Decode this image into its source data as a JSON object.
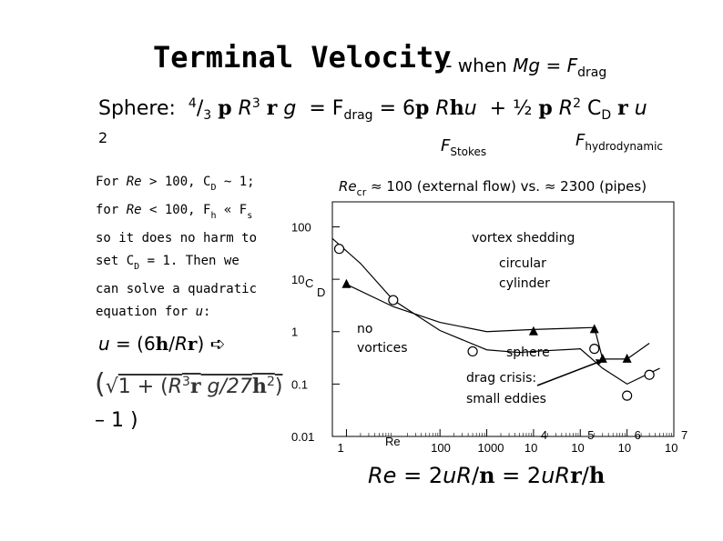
{
  "title": "Terminal Velocity",
  "subtitle_prefix": "-- when",
  "subtitle_mg": "Mg = F",
  "subtitle_drag_sub": "drag",
  "eq1": {
    "prefix": "Sphere:",
    "frac": "4",
    "frac_den": "3",
    "rho": "p",
    "R": "R",
    "cube": "3",
    "r": "r",
    "g": "g",
    "eq": "= F",
    "drag": "drag",
    "eq2": "= 6",
    "p2": "p",
    "R2": "R",
    "hbar": "h",
    "u": "u",
    "plus": "+ ½",
    "p3": "p",
    "R3": "R",
    "sq": "2",
    "cd": "C",
    "cd_sub": "D",
    "r2": "r",
    "u2": "u"
  },
  "eq1_two": "2",
  "f_stokes": "F",
  "f_stokes_sub": "Stokes",
  "f_hydro": "F",
  "f_hydro_sub": "hydrodynamic",
  "paragraph": {
    "l1a": "For ",
    "l1re": "Re",
    "l1b": " > 100, C",
    "l1sub": "D",
    "l1c": " ~ 1;",
    "l2a": "for ",
    "l2re": "Re",
    "l2b": " < 100, F",
    "l2sub": "h",
    "l2c": " « F",
    "l2sub2": "s",
    "l3": "so it does no harm to",
    "l4a": "set C",
    "l4sub": "D",
    "l4b": " = 1.  Then we",
    "l5": "can solve a quadratic",
    "l6a": "equation for ",
    "l6u": "u",
    "l6b": ":"
  },
  "recr": {
    "re": "Re",
    "sub": "cr",
    "text": " ≈ 100 (external flow)  vs. ≈ 2300 (pipes)"
  },
  "u_eq": {
    "u": "u",
    "a": " =  (6",
    "h": "h",
    "b": "/",
    "R": "R",
    "r": "r",
    "c": ")  ",
    "arrow": "➪"
  },
  "u_eq2": {
    "open": "(",
    "sqrt": "√",
    "a": "1 + (",
    "R": "R",
    "cube": "3",
    "r": "r",
    "g": " g/27",
    "h": "h",
    "sq": "2",
    "close": ")"
  },
  "u_eq3": "– 1 )",
  "re_eq": {
    "a": "Re",
    "b": " = 2",
    "u": "u",
    "R": "R",
    "slash": "/",
    "eta": "n",
    "c": " = 2",
    "u2": "u",
    "R2": "R",
    "r": "r",
    "slash2": "/",
    "h": "h"
  },
  "chart_data": {
    "type": "line",
    "title": "",
    "xlabel": "Re",
    "ylabel_c": "C",
    "ylabel_d": "D",
    "xscale": "log",
    "yscale": "log",
    "xlim": [
      0.5,
      10000000
    ],
    "ylim": [
      0.01,
      300
    ],
    "x_ticks": [
      {
        "v": 1,
        "base": "1",
        "exp": ""
      },
      {
        "v": 100,
        "base": "100",
        "exp": ""
      },
      {
        "v": 1000,
        "base": "1000",
        "exp": ""
      },
      {
        "v": 10000,
        "base": "10",
        "exp": "4"
      },
      {
        "v": 100000,
        "base": "10",
        "exp": "5"
      },
      {
        "v": 1000000,
        "base": "10",
        "exp": "6"
      },
      {
        "v": 10000000,
        "base": "10",
        "exp": "7"
      }
    ],
    "y_ticks": [
      {
        "v": 100,
        "label": "100"
      },
      {
        "v": 10,
        "label": "10"
      },
      {
        "v": 1,
        "label": "1"
      },
      {
        "v": 0.1,
        "label": "0.1"
      },
      {
        "v": 0.01,
        "label": "0.01"
      }
    ],
    "series": [
      {
        "name": "sphere",
        "points": [
          [
            0.5,
            60
          ],
          [
            2,
            20
          ],
          [
            10,
            4
          ],
          [
            100,
            1.05
          ],
          [
            1000,
            0.45
          ],
          [
            5000,
            0.4
          ],
          [
            10000,
            0.42
          ],
          [
            100000,
            0.47
          ],
          [
            300000,
            0.2
          ],
          [
            1000000,
            0.1
          ],
          [
            5000000,
            0.2
          ]
        ],
        "markers_circle": [
          [
            0.7,
            38
          ],
          [
            10,
            4
          ],
          [
            500,
            0.42
          ],
          [
            200000,
            0.47
          ],
          [
            3000000,
            0.15
          ],
          [
            1000000,
            0.06
          ]
        ]
      },
      {
        "name": "cylinder",
        "points": [
          [
            1,
            8
          ],
          [
            10,
            3
          ],
          [
            100,
            1.5
          ],
          [
            1000,
            1.0
          ],
          [
            10000,
            1.1
          ],
          [
            200000,
            1.2
          ],
          [
            300000,
            0.3
          ],
          [
            1000000,
            0.3
          ],
          [
            3000000,
            0.6
          ]
        ],
        "markers_triangle": [
          [
            1,
            8
          ],
          [
            10000,
            1.0
          ],
          [
            200000,
            1.1
          ],
          [
            300000,
            0.3
          ],
          [
            1000000,
            0.3
          ]
        ]
      }
    ],
    "annotations": [
      {
        "text": "vortex shedding"
      },
      {
        "text": "circular"
      },
      {
        "text": "cylinder"
      },
      {
        "text": "no"
      },
      {
        "text": "vortices"
      },
      {
        "text": "sphere"
      },
      {
        "text": "drag crisis:"
      },
      {
        "text": "small eddies"
      }
    ]
  }
}
